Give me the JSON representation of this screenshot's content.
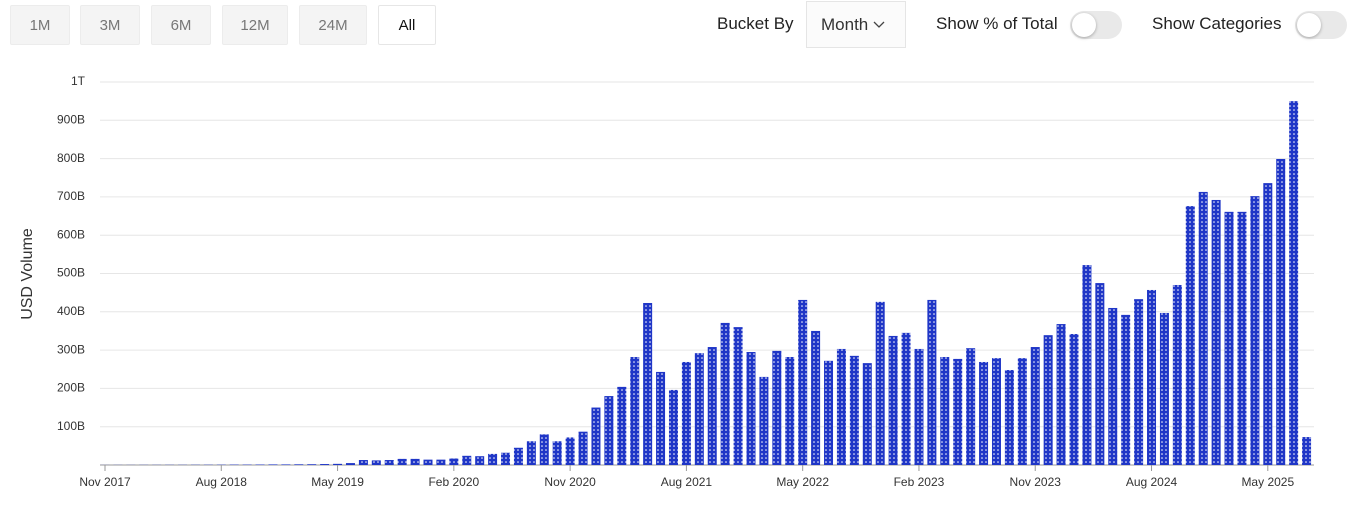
{
  "controls": {
    "ranges": [
      "1M",
      "3M",
      "6M",
      "12M",
      "24M",
      "All"
    ],
    "bucket_label": "Bucket By",
    "bucket_value": "Month",
    "percent_toggle": "Show % of Total",
    "categories_toggle": "Show Categories"
  },
  "chart_data": {
    "type": "bar",
    "y_label": "USD Volume",
    "color": "#1f36c7",
    "grid": true,
    "ylim": [
      0,
      1000
    ],
    "yticks": [
      {
        "value": 100,
        "label": "100B"
      },
      {
        "value": 200,
        "label": "200B"
      },
      {
        "value": 300,
        "label": "300B"
      },
      {
        "value": 400,
        "label": "400B"
      },
      {
        "value": 500,
        "label": "500B"
      },
      {
        "value": 600,
        "label": "600B"
      },
      {
        "value": 700,
        "label": "700B"
      },
      {
        "value": 800,
        "label": "800B"
      },
      {
        "value": 900,
        "label": "900B"
      },
      {
        "value": 1000,
        "label": "1T"
      }
    ],
    "categories": [
      "Nov 2017",
      null,
      null,
      null,
      null,
      null,
      null,
      null,
      null,
      "Aug 2018",
      null,
      null,
      null,
      null,
      null,
      null,
      null,
      null,
      "May 2019",
      null,
      null,
      null,
      null,
      null,
      null,
      null,
      null,
      "Feb 2020",
      null,
      null,
      null,
      null,
      null,
      null,
      null,
      null,
      "Nov 2020",
      null,
      null,
      null,
      null,
      null,
      null,
      null,
      null,
      "Aug 2021",
      null,
      null,
      null,
      null,
      null,
      null,
      null,
      null,
      "May 2022",
      null,
      null,
      null,
      null,
      null,
      null,
      null,
      null,
      "Feb 2023",
      null,
      null,
      null,
      null,
      null,
      null,
      null,
      null,
      "Nov 2023",
      null,
      null,
      null,
      null,
      null,
      null,
      null,
      null,
      "Aug 2024",
      null,
      null,
      null,
      null,
      null,
      null,
      null,
      null,
      "May 2025",
      null,
      null,
      null
    ],
    "values": [
      0.2,
      0.3,
      0.3,
      0.4,
      0.4,
      0.5,
      0.5,
      0.6,
      0.7,
      0.8,
      1,
      1,
      1.2,
      1.5,
      1.5,
      1.8,
      2,
      2.5,
      3,
      5,
      13,
      12,
      13,
      16,
      16,
      14,
      14,
      17,
      24,
      23,
      29,
      32,
      45,
      62,
      80,
      62,
      72,
      87,
      150,
      180,
      204,
      282,
      423,
      243,
      196,
      269,
      292,
      308,
      371,
      360,
      295,
      230,
      298,
      282,
      431,
      350,
      272,
      303,
      285,
      266,
      426,
      337,
      345,
      303,
      431,
      282,
      277,
      305,
      269,
      279,
      248,
      279,
      308,
      339,
      368,
      342,
      522,
      475,
      410,
      392,
      433,
      457,
      397,
      470,
      676,
      713,
      692,
      661,
      661,
      702,
      736,
      799,
      950,
      73
    ]
  }
}
